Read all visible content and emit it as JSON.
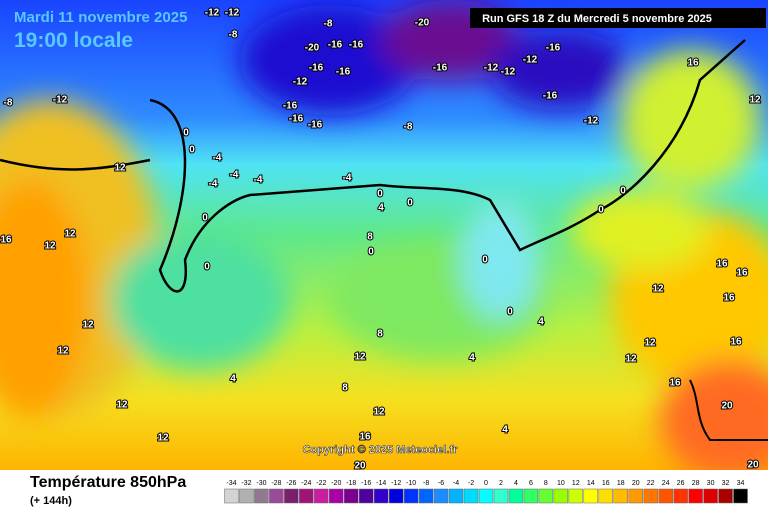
{
  "header": {
    "date": "Mardi 11 novembre 2025",
    "time": "19:00 locale",
    "run": "Run GFS 18 Z du Mercredi 5 novembre 2025"
  },
  "footer": {
    "title": "Température 850hPa",
    "lead": "(+ 144h)",
    "copyright": "Copyright © 2025 Meteociel.fr"
  },
  "scale": {
    "ticks": [
      -34,
      -32,
      -30,
      -28,
      -26,
      -24,
      -22,
      -20,
      -18,
      -16,
      -14,
      -12,
      -10,
      -8,
      -6,
      -4,
      -2,
      0,
      2,
      4,
      6,
      8,
      10,
      12,
      14,
      16,
      18,
      20,
      22,
      24,
      26,
      28,
      30,
      32,
      34
    ],
    "colors": [
      "#d3d3d3",
      "#b0b0b0",
      "#8f7a8f",
      "#9a4a9a",
      "#7a1f6e",
      "#a0147a",
      "#c81ea0",
      "#aa00aa",
      "#7a0090",
      "#5000a0",
      "#3300cc",
      "#0000dd",
      "#0033ff",
      "#0066ff",
      "#1c8cff",
      "#00b4ff",
      "#00dcff",
      "#00ffff",
      "#33ffcc",
      "#00ff99",
      "#33ff66",
      "#66ff33",
      "#99ff00",
      "#ccff00",
      "#ffff00",
      "#ffdd00",
      "#ffbb00",
      "#ff9900",
      "#ff7700",
      "#ff5500",
      "#ff3300",
      "#ff0000",
      "#dd0000",
      "#aa0000",
      "#000000"
    ]
  },
  "map_labels": [
    "-12",
    "-12",
    "-8",
    "-8",
    "-12",
    "-8",
    "-16",
    "-20",
    "-16",
    "-12",
    "-16",
    "-16",
    "-20",
    "-16",
    "-12",
    "-12",
    "-12",
    "-16",
    "-16",
    "-12",
    "-8",
    "-16",
    "-16",
    "-16",
    "0",
    "0",
    "-4",
    "-4",
    "-4",
    "-4",
    "-4",
    "0",
    "4",
    "0",
    "0",
    "0",
    "12",
    "12",
    "12",
    "16",
    "12",
    "12",
    "12",
    "12",
    "4",
    "8",
    "12",
    "12",
    "8",
    "4",
    "4",
    "0",
    "0",
    "0",
    "0",
    "12",
    "12",
    "12",
    "16",
    "16",
    "16",
    "16",
    "16",
    "20",
    "16",
    "20",
    "20",
    "4",
    "12",
    "16",
    "8",
    "0"
  ]
}
